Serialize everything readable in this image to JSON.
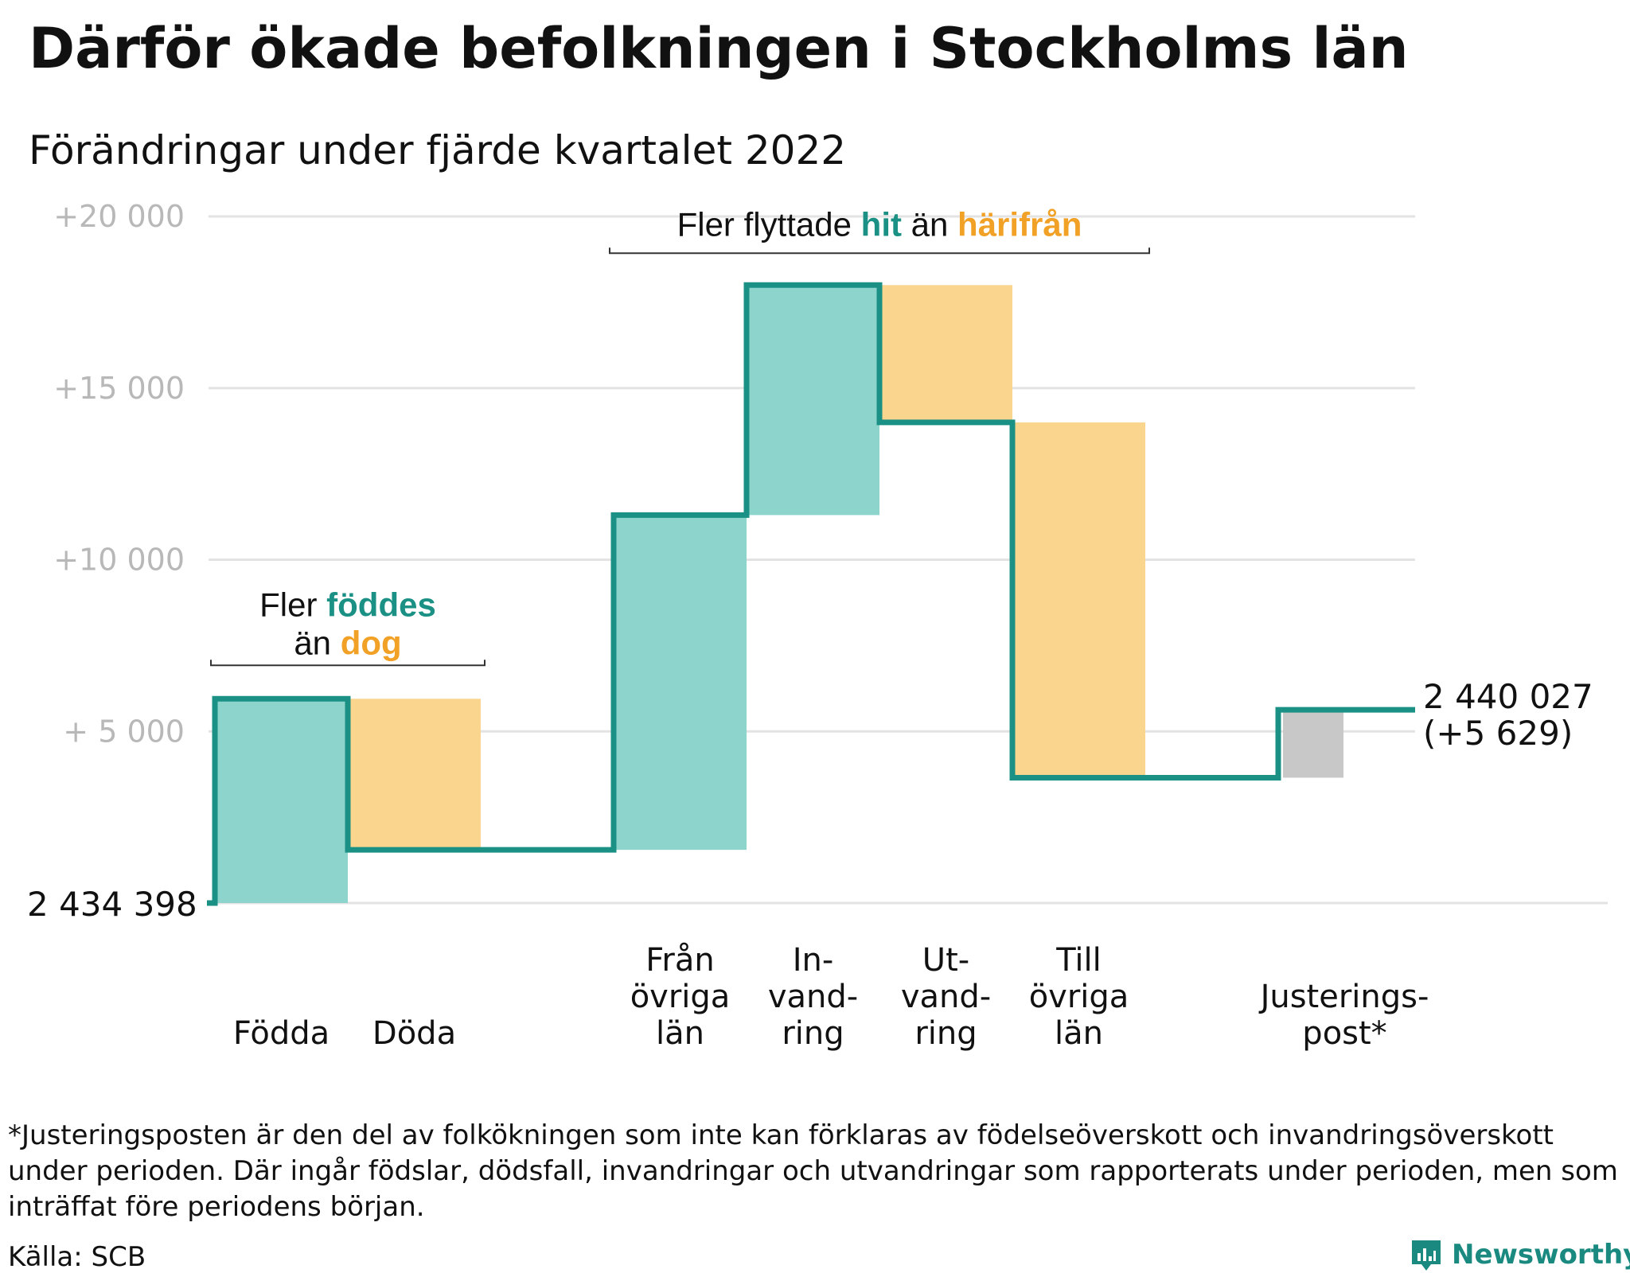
{
  "title": "Därför ökade befolkningen i Stockholms län",
  "subtitle": "Förändringar under fjärde kvartalet 2022",
  "colors": {
    "increase": "#8dd4cc",
    "decrease": "#fad58e",
    "adjustment": "#c8c8c8",
    "line": "#1b9185",
    "accent_teal": "#1b9185",
    "accent_orange": "#f2a127",
    "grid": "#e3e3e3",
    "tick": "#b8b8b8"
  },
  "chart_data": {
    "type": "waterfall",
    "baseline_value": 2434398,
    "start_label": "2 434 398",
    "end_label_line1": "2 440 027",
    "end_label_line2": "(+5 629)",
    "y_ticks": [
      {
        "value": 5000,
        "label": "+ 5 000"
      },
      {
        "value": 10000,
        "label": "+10 000"
      },
      {
        "value": 15000,
        "label": "+15 000"
      },
      {
        "value": 20000,
        "label": "+20 000"
      }
    ],
    "ylim": [
      0,
      20000
    ],
    "steps": [
      {
        "label_lines": [
          "Födda"
        ],
        "from": 0,
        "to": 5950,
        "kind": "increase"
      },
      {
        "label_lines": [
          "Döda"
        ],
        "from": 5950,
        "to": 1550,
        "kind": "decrease"
      },
      {
        "label_lines": [
          ""
        ],
        "from": 1550,
        "to": 1550,
        "kind": "none"
      },
      {
        "label_lines": [
          "Från",
          "övriga",
          "län"
        ],
        "from": 1550,
        "to": 11300,
        "kind": "increase"
      },
      {
        "label_lines": [
          "In-",
          "vand-",
          "ring"
        ],
        "from": 11300,
        "to": 18000,
        "kind": "increase"
      },
      {
        "label_lines": [
          "Ut-",
          "vand-",
          "ring"
        ],
        "from": 18000,
        "to": 14000,
        "kind": "decrease"
      },
      {
        "label_lines": [
          "Till",
          "övriga",
          "län"
        ],
        "from": 14000,
        "to": 3650,
        "kind": "decrease"
      },
      {
        "label_lines": [
          ""
        ],
        "from": 3650,
        "to": 3650,
        "kind": "none"
      },
      {
        "label_lines": [
          "Justerings-",
          "post*"
        ],
        "from": 3650,
        "to": 5629,
        "kind": "adjustment"
      }
    ],
    "annotations": [
      {
        "parts": [
          {
            "text": "Fler ",
            "color": "text"
          },
          {
            "text": "föddes",
            "color": "teal"
          }
        ],
        "second_line": [
          {
            "text": "än ",
            "color": "text"
          },
          {
            "text": "dog",
            "color": "orange"
          }
        ],
        "bracket_from_step": 0,
        "bracket_to_step": 1
      },
      {
        "parts": [
          {
            "text": "Fler flyttade ",
            "color": "text"
          },
          {
            "text": "hit",
            "color": "teal"
          },
          {
            "text": " än ",
            "color": "text"
          },
          {
            "text": "härifrån",
            "color": "orange"
          }
        ],
        "second_line": [],
        "bracket_from_step": 3,
        "bracket_to_step": 6
      }
    ]
  },
  "footnote": "*Justeringsposten är den del av folkökningen som inte kan förklaras av födelseöverskott och invandringsöverskott under perioden. Där ingår födslar, dödsfall, invandringar och utvandringar som rapporterats under perioden, men som inträffat före periodens början.",
  "source": "Källa: SCB",
  "logo_text": "Newsworthy"
}
